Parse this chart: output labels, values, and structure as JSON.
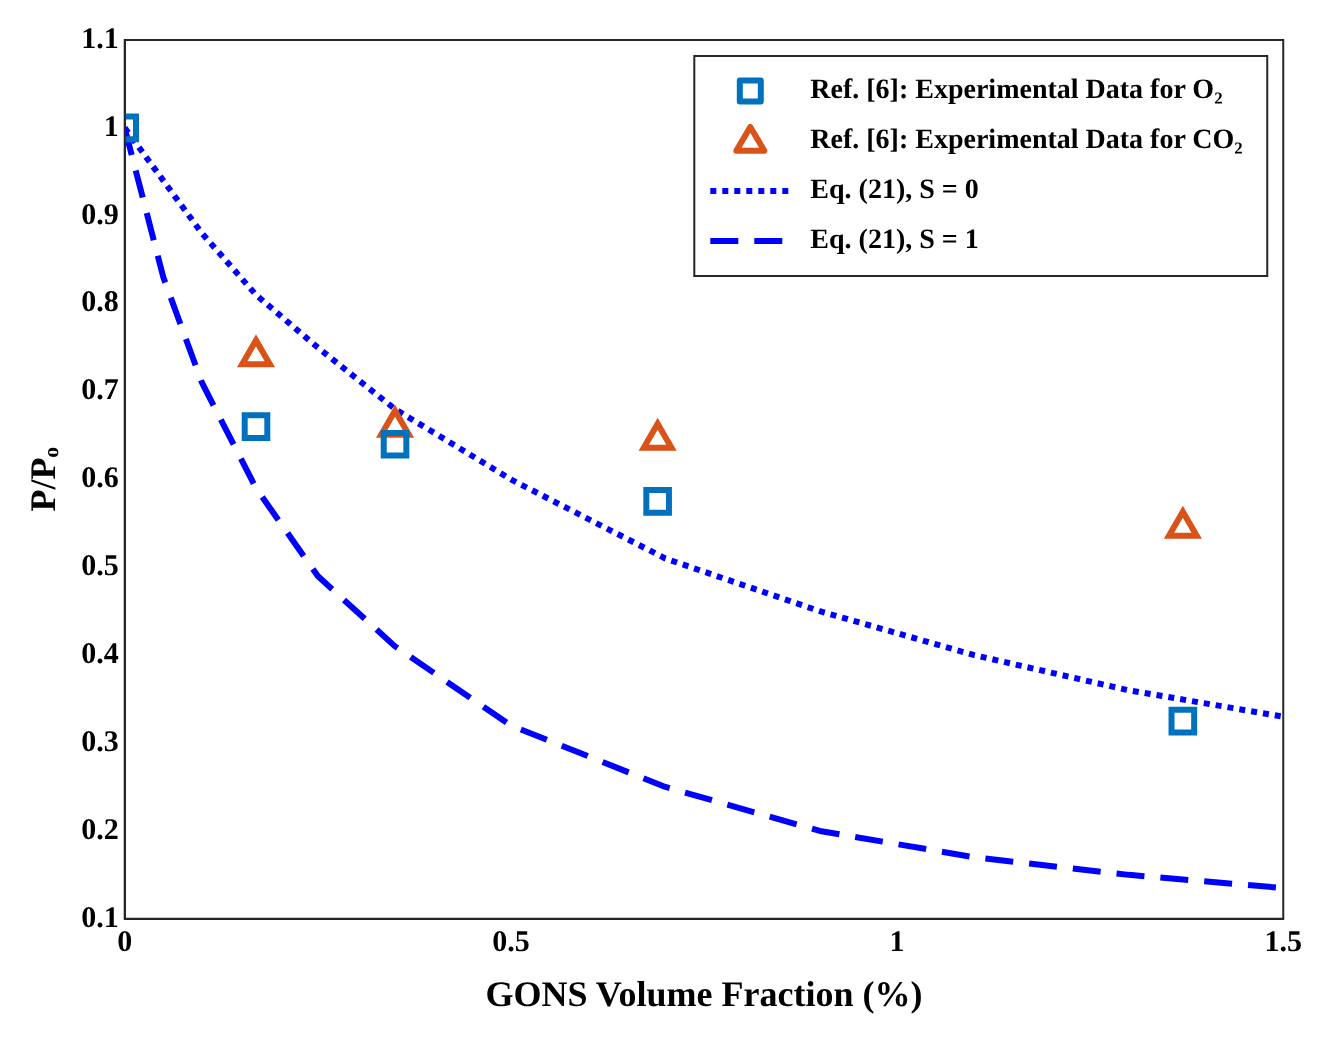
{
  "chart_data": {
    "type": "scatter",
    "xlabel": "GONS Volume Fraction (%)",
    "ylabel": "P/Pₒ",
    "xlim": [
      0,
      1.5
    ],
    "xticks": [
      0,
      0.5,
      1,
      1.5
    ],
    "ylim": [
      0.1,
      1.1
    ],
    "yticks": [
      0.1,
      0.2,
      0.3,
      0.4,
      0.5,
      0.6,
      0.7,
      0.8,
      0.9,
      1,
      1.1
    ],
    "grid": false,
    "legend": "top right",
    "series": [
      {
        "name": "Ref. [6]: Experimental Data for O₂",
        "marker": "square",
        "color": "#0072bd",
        "x": [
          0,
          0.17,
          0.35,
          0.69,
          1.37
        ],
        "values": [
          1.0,
          0.66,
          0.64,
          0.575,
          0.325
        ]
      },
      {
        "name": "Ref. [6]: Experimental Data for CO₂",
        "marker": "triangle",
        "color": "#d95319",
        "x": [
          0.17,
          0.35,
          0.69,
          1.37
        ],
        "values": [
          0.74,
          0.66,
          0.645,
          0.545
        ]
      },
      {
        "name": "Eq. (21), S = 0",
        "type": "line",
        "marker": "none",
        "line_style": "dotted",
        "color": "#0000ff",
        "x": [
          0,
          0.05,
          0.1,
          0.17,
          0.25,
          0.35,
          0.5,
          0.7,
          0.9,
          1.1,
          1.3,
          1.5
        ],
        "values": [
          1.0,
          0.94,
          0.88,
          0.81,
          0.75,
          0.68,
          0.6,
          0.51,
          0.45,
          0.4,
          0.36,
          0.33
        ]
      },
      {
        "name": "Eq. (21), S = 1",
        "type": "line",
        "marker": "none",
        "line_style": "dashed",
        "color": "#0000ff",
        "x": [
          0,
          0.05,
          0.1,
          0.17,
          0.25,
          0.35,
          0.5,
          0.7,
          0.9,
          1.1,
          1.3,
          1.5
        ],
        "values": [
          1.0,
          0.83,
          0.71,
          0.59,
          0.49,
          0.41,
          0.32,
          0.25,
          0.2,
          0.17,
          0.15,
          0.135
        ]
      }
    ]
  }
}
